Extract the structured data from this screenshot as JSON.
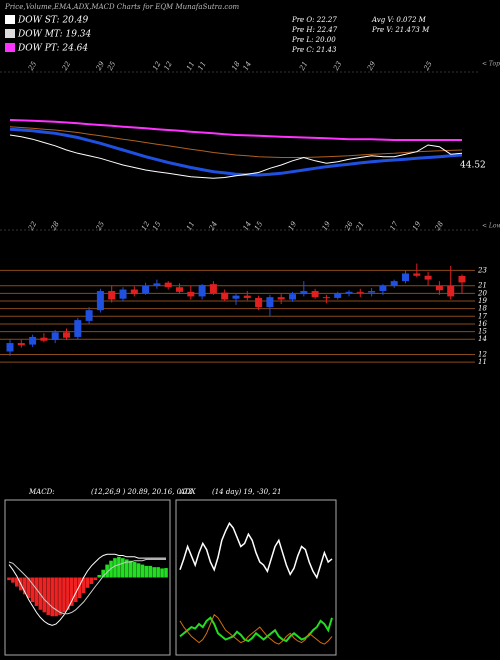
{
  "header": {
    "title": "Price,Volume,EMA,ADX,MACD Charts for EQM MunafaSutra.com"
  },
  "legend": [
    {
      "label": "DOW ST: 20.49",
      "color": "#ffffff"
    },
    {
      "label": "DOW MT: 19.34",
      "color": "#dddddd"
    },
    {
      "label": "DOW PT: 24.64",
      "color": "#ff33ff"
    }
  ],
  "stats": [
    "Pre O: 22.27",
    "Pre H: 22.47",
    "Pre L: 20.00",
    "Pre C: 21.43",
    "Avg V: 0.072 M",
    "Pre V: 21.473 M"
  ],
  "chart_data": [
    {
      "type": "line",
      "categories": [
        null,
        null,
        "25",
        null,
        null,
        "22",
        null,
        null,
        "29",
        "25",
        null,
        null,
        null,
        "12",
        "12",
        null,
        "11",
        "11",
        null,
        null,
        "18",
        "14",
        null,
        null,
        null,
        null,
        "21",
        null,
        null,
        "23",
        null,
        null,
        "29",
        null,
        null,
        null,
        null,
        "25",
        null,
        null,
        null
      ],
      "ylim": [
        15,
        30
      ],
      "value_note": "44.52",
      "corner_label": "< Tops",
      "series": [
        {
          "color": "#ff33ff",
          "width": 2,
          "values": [
            24.6,
            24.55,
            24.5,
            24.45,
            24.4,
            24.3,
            24.2,
            24.1,
            24.0,
            23.9,
            23.8,
            23.7,
            23.6,
            23.5,
            23.4,
            23.3,
            23.2,
            23.1,
            23.0,
            22.9,
            22.8,
            22.75,
            22.7,
            22.65,
            22.6,
            22.55,
            22.5,
            22.45,
            22.4,
            22.35,
            22.3,
            22.3,
            22.3,
            22.25,
            22.2,
            22.2,
            22.2,
            22.2,
            22.2,
            22.2,
            22.2
          ]
        },
        {
          "color": "#b06020",
          "width": 1,
          "values": [
            23.8,
            23.7,
            23.6,
            23.5,
            23.4,
            23.25,
            23.1,
            22.9,
            22.7,
            22.5,
            22.3,
            22.1,
            21.9,
            21.7,
            21.5,
            21.3,
            21.1,
            20.9,
            20.7,
            20.55,
            20.4,
            20.3,
            20.2,
            20.15,
            20.1,
            20.1,
            20.1,
            20.15,
            20.2,
            20.25,
            20.3,
            20.4,
            20.5,
            20.55,
            20.6,
            20.7,
            20.8,
            20.85,
            20.9,
            20.95,
            21.0
          ]
        },
        {
          "color": "#2050e0",
          "width": 3,
          "values": [
            23.5,
            23.4,
            23.3,
            23.15,
            23.0,
            22.75,
            22.5,
            22.15,
            21.8,
            21.4,
            21.0,
            20.6,
            20.2,
            19.85,
            19.5,
            19.2,
            18.9,
            18.65,
            18.4,
            18.25,
            18.1,
            18.05,
            18.0,
            18.1,
            18.2,
            18.4,
            18.6,
            18.8,
            19.0,
            19.15,
            19.3,
            19.45,
            19.6,
            19.7,
            19.8,
            19.9,
            20.0,
            20.1,
            20.2,
            20.3,
            20.4
          ]
        },
        {
          "color": "#ffffff",
          "width": 1,
          "values": [
            22.8,
            22.6,
            22.3,
            21.9,
            21.5,
            21.0,
            20.6,
            20.3,
            20.0,
            19.6,
            19.2,
            18.9,
            18.6,
            18.4,
            18.2,
            18.0,
            17.8,
            17.7,
            17.6,
            17.7,
            17.9,
            18.1,
            18.3,
            18.8,
            19.2,
            19.7,
            20.1,
            19.7,
            19.4,
            19.6,
            19.9,
            20.1,
            20.3,
            20.2,
            20.2,
            20.5,
            20.8,
            21.6,
            21.4,
            20.5,
            20.6
          ]
        }
      ]
    },
    {
      "type": "candlestick",
      "categories": [
        null,
        null,
        "22",
        null,
        "28",
        null,
        null,
        null,
        "25",
        null,
        null,
        null,
        "12",
        "15",
        null,
        null,
        "11",
        null,
        "24",
        null,
        null,
        "14",
        "15",
        null,
        null,
        "19",
        null,
        null,
        "19",
        null,
        "26",
        "21",
        null,
        null,
        "17",
        null,
        "19",
        null,
        "28",
        null,
        null
      ],
      "open": [
        12.4,
        13.5,
        13.3,
        14.2,
        13.9,
        14.9,
        14.3,
        16.4,
        17.8,
        20.3,
        19.3,
        20.5,
        20.0,
        21.0,
        21.4,
        20.8,
        20.2,
        19.6,
        21.2,
        20.1,
        19.3,
        19.7,
        19.4,
        18.2,
        19.5,
        19.2,
        19.9,
        20.3,
        19.5,
        19.4,
        20.0,
        20.2,
        20.1,
        20.3,
        21.0,
        21.6,
        22.6,
        22.3,
        21.0,
        21.0,
        22.27
      ],
      "high": [
        14.0,
        13.9,
        14.6,
        14.8,
        15.2,
        15.4,
        16.8,
        18.2,
        20.6,
        21.0,
        20.8,
        20.9,
        21.4,
        21.8,
        21.6,
        21.3,
        21.0,
        21.2,
        21.6,
        20.5,
        19.9,
        20.3,
        19.7,
        19.8,
        19.9,
        20.2,
        21.6,
        20.6,
        19.8,
        20.2,
        20.4,
        20.6,
        20.7,
        21.2,
        21.8,
        23.0,
        23.9,
        22.8,
        21.6,
        23.6,
        22.47
      ],
      "low": [
        11.8,
        12.9,
        13.0,
        13.6,
        13.5,
        13.9,
        14.0,
        16.0,
        17.5,
        18.8,
        19.0,
        19.6,
        19.8,
        20.6,
        20.5,
        20.0,
        19.2,
        19.2,
        19.8,
        19.0,
        18.5,
        19.1,
        17.8,
        17.0,
        18.6,
        18.9,
        19.6,
        19.3,
        18.7,
        19.2,
        19.6,
        19.5,
        19.6,
        19.8,
        20.7,
        21.3,
        22.1,
        21.0,
        19.8,
        19.2,
        20.0
      ],
      "close": [
        13.5,
        13.2,
        14.3,
        13.8,
        14.9,
        14.2,
        16.5,
        17.8,
        20.3,
        19.2,
        20.5,
        19.9,
        21.0,
        21.3,
        20.8,
        20.2,
        19.6,
        21.1,
        20.0,
        19.2,
        19.7,
        19.4,
        18.2,
        19.5,
        19.2,
        19.9,
        20.3,
        19.5,
        19.4,
        20.0,
        20.2,
        20.1,
        20.3,
        21.0,
        21.6,
        22.6,
        22.3,
        21.8,
        20.4,
        19.6,
        21.43
      ],
      "up_color": "#2050e0",
      "down_color": "#e02020",
      "grid_color": "#8a4a1a",
      "ylim": [
        10.5,
        24.1
      ],
      "yticks": [
        11,
        12,
        14,
        15,
        16,
        17,
        18,
        19,
        20,
        21,
        23
      ],
      "grid": true,
      "corner_label": "< Lows"
    },
    {
      "type": "macd",
      "title": "MACD:",
      "subtitle": "(12,26,9 ) 20.89, 20.16, 0.73",
      "ylim": [
        -6,
        6
      ],
      "pos_color": "#22dd22",
      "neg_color": "#ee2222",
      "histogram": [
        -0.2,
        -0.4,
        -0.7,
        -1.0,
        -1.3,
        -1.6,
        -1.9,
        -2.2,
        -2.5,
        -2.7,
        -2.9,
        -3.0,
        -3.0,
        -2.9,
        -2.7,
        -2.5,
        -2.2,
        -1.9,
        -1.6,
        -1.2,
        -0.8,
        -0.5,
        -0.2,
        0.2,
        0.6,
        1.0,
        1.3,
        1.5,
        1.6,
        1.5,
        1.4,
        1.3,
        1.2,
        1.1,
        1.0,
        0.9,
        0.9,
        0.8,
        0.8,
        0.7,
        0.73
      ],
      "series": [
        {
          "color": "#ffffff",
          "width": 1,
          "values": [
            1.0,
            0.6,
            0.1,
            -0.5,
            -1.1,
            -1.7,
            -2.2,
            -2.7,
            -3.1,
            -3.4,
            -3.6,
            -3.7,
            -3.6,
            -3.3,
            -2.9,
            -2.4,
            -1.8,
            -1.2,
            -0.6,
            0.0,
            0.5,
            0.9,
            1.2,
            1.5,
            1.7,
            1.8,
            1.8,
            1.8,
            1.7,
            1.7,
            1.6,
            1.6,
            1.6,
            1.5,
            1.5,
            1.5,
            1.5,
            1.5,
            1.5,
            1.5,
            1.5
          ]
        },
        {
          "color": "#cccccc",
          "width": 1,
          "values": [
            1.2,
            1.1,
            0.8,
            0.5,
            0.2,
            -0.1,
            -0.5,
            -0.9,
            -1.3,
            -1.7,
            -2.0,
            -2.3,
            -2.5,
            -2.7,
            -2.8,
            -2.8,
            -2.7,
            -2.5,
            -2.2,
            -1.9,
            -1.5,
            -1.1,
            -0.7,
            -0.3,
            0.1,
            0.4,
            0.7,
            0.9,
            1.0,
            1.1,
            1.2,
            1.2,
            1.3,
            1.3,
            1.3,
            1.4,
            1.4,
            1.4,
            1.4,
            1.4,
            1.4
          ]
        }
      ]
    },
    {
      "type": "line",
      "title": "ADX",
      "subtitle": "(14 day) 19, -30, 21",
      "ylim": [
        0,
        100
      ],
      "series": [
        {
          "color": "#ffffff",
          "width": 1.5,
          "values": [
            55,
            62,
            70,
            64,
            58,
            66,
            72,
            68,
            60,
            55,
            63,
            74,
            80,
            85,
            82,
            76,
            70,
            72,
            78,
            74,
            66,
            60,
            58,
            54,
            62,
            70,
            74,
            66,
            58,
            52,
            56,
            64,
            70,
            68,
            60,
            54,
            50,
            58,
            66,
            60,
            62
          ]
        },
        {
          "color": "#22dd22",
          "width": 2,
          "values": [
            12,
            14,
            16,
            18,
            17,
            20,
            18,
            22,
            24,
            20,
            14,
            12,
            10,
            11,
            12,
            15,
            13,
            10,
            9,
            11,
            14,
            12,
            10,
            12,
            14,
            16,
            12,
            10,
            9,
            12,
            14,
            12,
            10,
            11,
            13,
            16,
            18,
            22,
            20,
            16,
            24
          ]
        },
        {
          "color": "#d07010",
          "width": 1,
          "values": [
            22,
            18,
            15,
            12,
            10,
            8,
            10,
            14,
            20,
            26,
            24,
            20,
            16,
            14,
            12,
            10,
            8,
            9,
            12,
            14,
            16,
            18,
            15,
            12,
            10,
            8,
            7,
            9,
            12,
            14,
            11,
            9,
            8,
            10,
            14,
            12,
            10,
            8,
            7,
            9,
            12
          ]
        }
      ]
    }
  ]
}
